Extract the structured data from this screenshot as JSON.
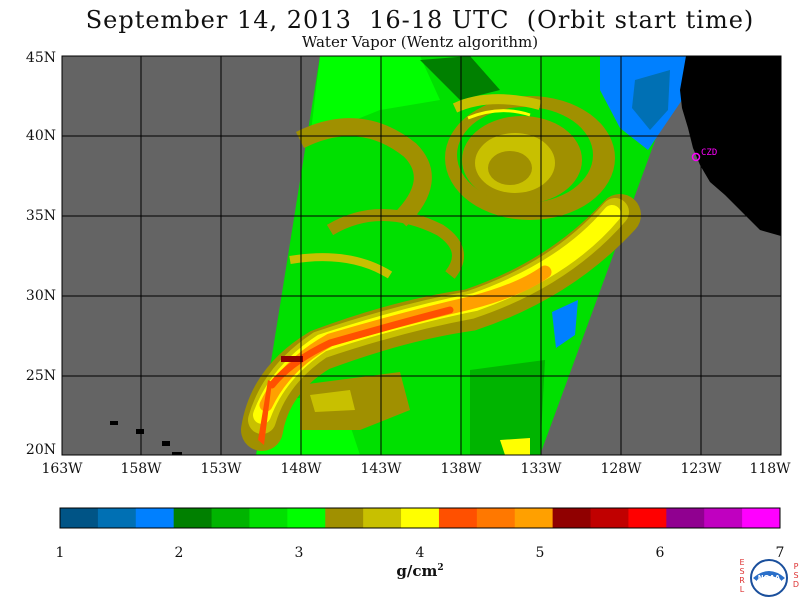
{
  "title": "September 14, 2013  16-18 UTC  (Orbit start time)",
  "subtitle": "Water Vapor (Wentz algorithm)",
  "station": "CZD",
  "units_text": "g/cm",
  "units_exponent": "2",
  "lat_labels": [
    "45N",
    "40N",
    "35N",
    "30N",
    "25N",
    "20N"
  ],
  "lon_labels": [
    "163W",
    "158W",
    "153W",
    "148W",
    "143W",
    "138W",
    "133W",
    "128W",
    "123W",
    "118W"
  ],
  "colorbar": {
    "ticks": [
      "1",
      "2",
      "3",
      "4",
      "5",
      "6",
      "7"
    ],
    "colors": [
      "#005486",
      "#0070b4",
      "#0080ff",
      "#008000",
      "#00b400",
      "#00e000",
      "#00ff00",
      "#a09000",
      "#c8c000",
      "#ffff00",
      "#ff5000",
      "#ff7800",
      "#ffa000",
      "#900000",
      "#c00000",
      "#ff0000",
      "#900090",
      "#c000c0",
      "#ff00ff"
    ]
  },
  "map_colors": {
    "no_data": "#646464",
    "land": "#000000",
    "station": "#ff00ff"
  },
  "logo_left": "ESRL",
  "logo_right": "PSD",
  "logo_center": "NOAA"
}
